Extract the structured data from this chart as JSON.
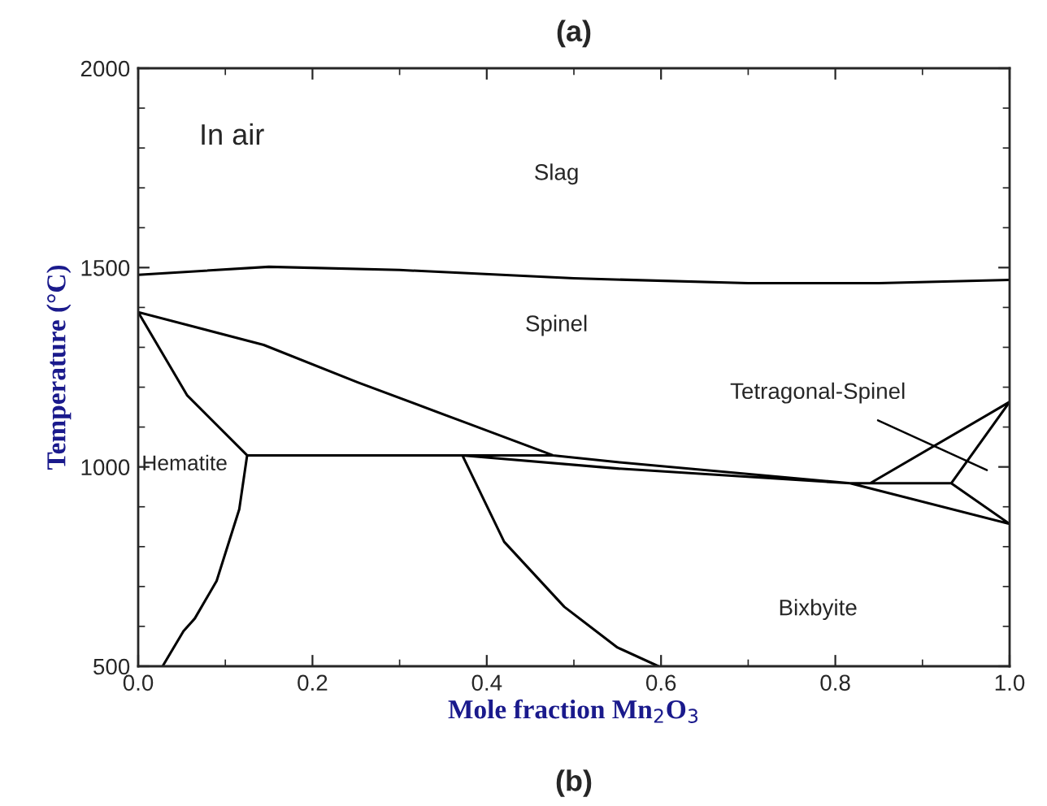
{
  "chart_data": {
    "type": "line",
    "title": "(a)",
    "xlabel": "Mole fraction Mn$_{2}$O$_{3}$",
    "ylabel": "Temperature (°C)",
    "xlim": [
      0,
      1
    ],
    "ylim": [
      500,
      2000
    ],
    "xticks": [
      {
        "value": 0,
        "label": "0.0"
      },
      0.2,
      0.4,
      0.6,
      0.8,
      {
        "value": 1,
        "label": "1.0"
      }
    ],
    "yticks": [
      500,
      1000,
      1500,
      2000
    ],
    "grid": false,
    "legend": false,
    "marker": "none",
    "line_style": "solid",
    "series": [
      {
        "color": "#000000",
        "x": [
          0,
          0.15,
          0.3,
          0.5,
          0.7,
          0.85,
          1.0
        ],
        "values": [
          1482,
          1502,
          1494,
          1473,
          1461,
          1461,
          1469
        ]
      },
      {
        "color": "#000000",
        "x": [
          0.028,
          0.052,
          0.065,
          0.09,
          0.116,
          0.125,
          0.476,
          0.125,
          0.056,
          0,
          0.144,
          0.252,
          0.377,
          0.476,
          0.55,
          0.817,
          0.84,
          0.933,
          0.84,
          1.0,
          0.933,
          1.0,
          0.817,
          0.55,
          0.372,
          0.42,
          0.489,
          0.55,
          0.597
        ],
        "values": [
          500,
          588,
          620,
          714,
          894,
          1029,
          1029,
          1029,
          1180,
          1388,
          1306,
          1212,
          1110,
          1029,
          1012,
          959,
          959,
          959,
          959,
          1163,
          959,
          857,
          959,
          996,
          1029,
          812,
          649,
          547,
          500
        ]
      }
    ],
    "annotations": [
      "In air",
      "Slag",
      "Spinel",
      "Hematite",
      "Bixbyite",
      "Tetragonal-Spinel",
      "(b)"
    ]
  }
}
